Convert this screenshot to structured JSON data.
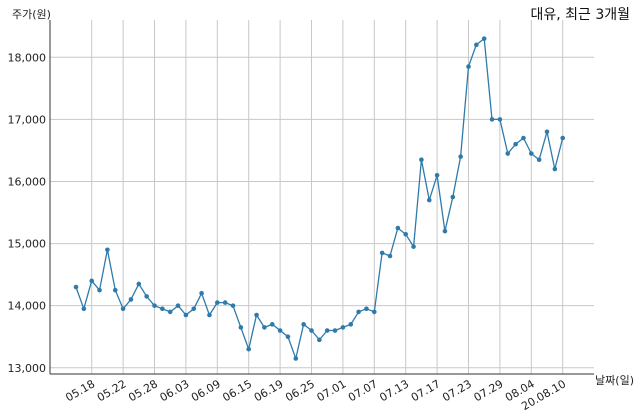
{
  "chart_data": {
    "type": "line",
    "title": "대유, 최근 3개월",
    "ylabel": "주가(원)",
    "xlabel": "날짜(일)",
    "ylim": [
      12900,
      18600
    ],
    "yticks": [
      13000,
      14000,
      15000,
      16000,
      17000,
      18000
    ],
    "ytick_labels": [
      "13,000",
      "14,000",
      "15,000",
      "16,000",
      "17,000",
      "18,000"
    ],
    "xtick_labels": [
      "05.18",
      "05.22",
      "05.28",
      "06.03",
      "06.09",
      "06.15",
      "06.19",
      "06.25",
      "07.01",
      "07.07",
      "07.13",
      "07.17",
      "07.23",
      "07.29",
      "08.04",
      "20.08.10"
    ],
    "xtick_indices": [
      2,
      6,
      10,
      14,
      18,
      22,
      26,
      30,
      34,
      38,
      42,
      46,
      50,
      54,
      58,
      62
    ],
    "grid": true,
    "line_color": "#2e7aaa",
    "series": [
      {
        "values": [
          14300,
          13950,
          14400,
          14250,
          14900,
          14250,
          13950,
          14100,
          14350,
          14150,
          14000,
          13950,
          13900,
          14000,
          13850,
          13950,
          14200,
          13850,
          14050,
          14050,
          14000,
          13650,
          13300,
          13850,
          13650,
          13700,
          13600,
          13500,
          13150,
          13700,
          13600,
          13450,
          13600,
          13600,
          13650,
          13700,
          13900,
          13950,
          13900,
          14850,
          14800,
          15250,
          15150,
          14950,
          16350,
          15700,
          16100,
          15200,
          15750,
          16400,
          17850,
          18200,
          18300,
          17000,
          17000,
          16450,
          16600,
          16700,
          16450,
          16350,
          16800,
          16200,
          16700
        ]
      }
    ]
  }
}
